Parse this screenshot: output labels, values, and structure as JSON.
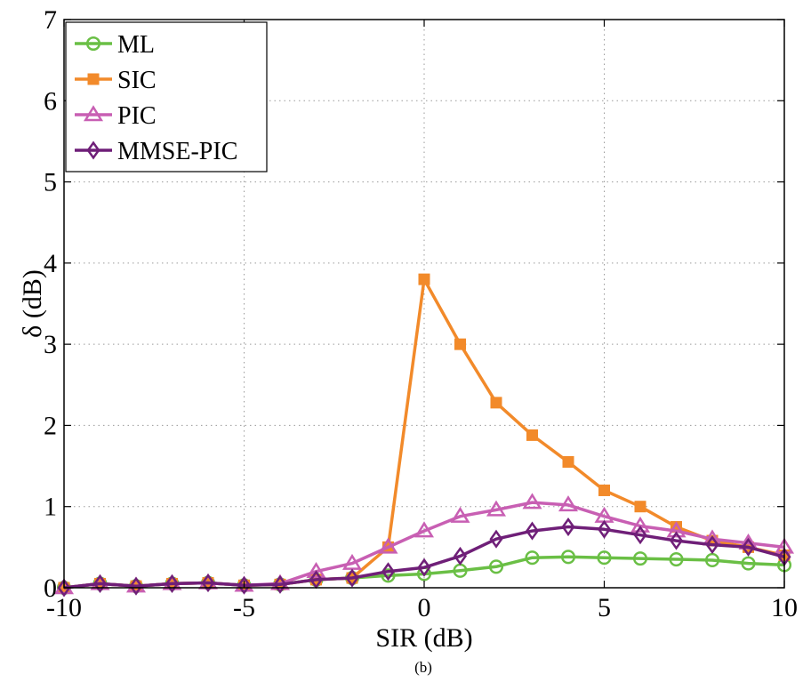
{
  "chart_data": {
    "type": "line",
    "xlabel": "SIR (dB)",
    "ylabel": "δ (dB)",
    "caption": "(b)",
    "xlim": [
      -10,
      10
    ],
    "ylim": [
      0,
      7
    ],
    "xticks": [
      -10,
      -5,
      0,
      5,
      10
    ],
    "yticks": [
      0,
      1,
      2,
      3,
      4,
      5,
      6,
      7
    ],
    "grid": true,
    "legend_position": "top-left",
    "x": [
      -10,
      -9,
      -8,
      -7,
      -6,
      -5,
      -4,
      -3,
      -2,
      -1,
      0,
      1,
      2,
      3,
      4,
      5,
      6,
      7,
      8,
      9,
      10
    ],
    "series": [
      {
        "name": "ML",
        "color": "#6abf45",
        "marker": "circle",
        "values": [
          0.0,
          0.05,
          0.02,
          0.05,
          0.06,
          0.03,
          0.04,
          0.1,
          0.12,
          0.15,
          0.17,
          0.21,
          0.26,
          0.37,
          0.38,
          0.37,
          0.36,
          0.35,
          0.34,
          0.3,
          0.28
        ]
      },
      {
        "name": "SIC",
        "color": "#f28a2a",
        "marker": "square",
        "values": [
          0.0,
          0.05,
          0.02,
          0.05,
          0.06,
          0.03,
          0.04,
          0.1,
          0.12,
          0.5,
          3.8,
          3.0,
          2.28,
          1.88,
          1.55,
          1.2,
          1.0,
          0.75,
          0.58,
          0.5,
          0.4
        ]
      },
      {
        "name": "PIC",
        "color": "#c85fb3",
        "marker": "triangle",
        "values": [
          0.0,
          0.05,
          0.02,
          0.05,
          0.06,
          0.03,
          0.05,
          0.2,
          0.3,
          0.5,
          0.7,
          0.88,
          0.96,
          1.05,
          1.02,
          0.88,
          0.76,
          0.7,
          0.6,
          0.55,
          0.5
        ]
      },
      {
        "name": "MMSE-PIC",
        "color": "#6f1f78",
        "marker": "diamond",
        "values": [
          0.0,
          0.05,
          0.02,
          0.05,
          0.06,
          0.03,
          0.04,
          0.1,
          0.12,
          0.2,
          0.25,
          0.39,
          0.6,
          0.7,
          0.75,
          0.72,
          0.65,
          0.58,
          0.53,
          0.5,
          0.38
        ]
      }
    ]
  }
}
